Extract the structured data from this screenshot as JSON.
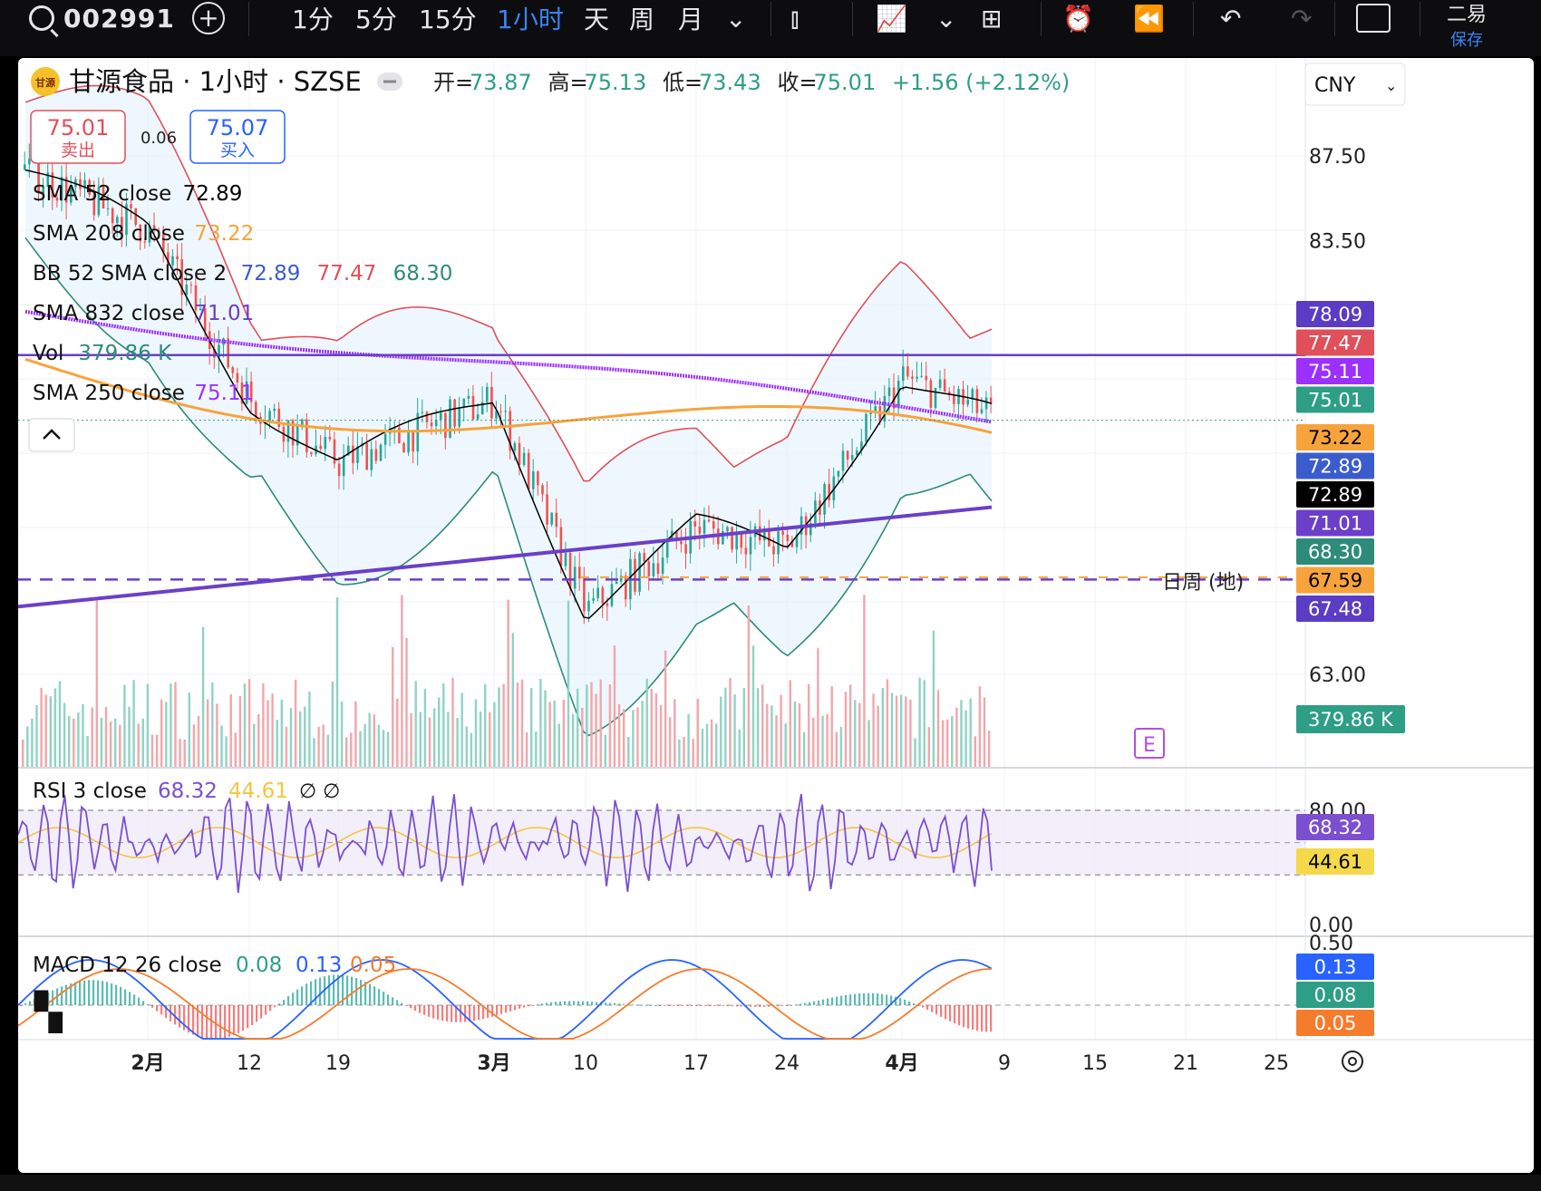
{
  "toolbar": {
    "symbol": "002991",
    "intervals": [
      "1分",
      "5分",
      "15分",
      "1小时",
      "天",
      "周",
      "月"
    ],
    "active_interval": "1小时",
    "account": "二易",
    "save_label": "保存"
  },
  "header": {
    "name": "甘源食品 · 1小时 · SZSE",
    "logo_text": "甘源",
    "ohlc": [
      {
        "label": "开=",
        "value": "73.87"
      },
      {
        "label": "高=",
        "value": "75.13"
      },
      {
        "label": "低=",
        "value": "73.43"
      },
      {
        "label": "收=",
        "value": "75.01"
      },
      {
        "label": "",
        "value": "+1.56 (+2.12%)"
      }
    ],
    "currency": "CNY"
  },
  "trade": {
    "sell_price": "75.01",
    "sell_label": "卖出",
    "spread": "0.06",
    "buy_price": "75.07",
    "buy_label": "买入"
  },
  "legend": [
    {
      "name": "SMA 52 close",
      "values": [
        {
          "v": "72.89",
          "c": "#000000"
        }
      ]
    },
    {
      "name": "SMA 208 close",
      "values": [
        {
          "v": "73.22",
          "c": "#f7a33c"
        }
      ]
    },
    {
      "name": "BB 52 SMA close 2",
      "values": [
        {
          "v": "72.89",
          "c": "#3b5ccc"
        },
        {
          "v": "77.47",
          "c": "#e0505a"
        },
        {
          "v": "68.30",
          "c": "#2e8b7a"
        }
      ]
    },
    {
      "name": "SMA 832 close",
      "values": [
        {
          "v": "71.01",
          "c": "#6b3fc9"
        }
      ]
    },
    {
      "name": "Vol",
      "values": [
        {
          "v": "379.86 K",
          "c": "#2e8b7a"
        }
      ]
    },
    {
      "name": "SMA 250 close",
      "values": [
        {
          "v": "75.11",
          "c": "#9b30ff"
        }
      ]
    }
  ],
  "collapse_icon": "chevron-up-icon",
  "price_ticks": [
    "87.50",
    "83.50",
    "63.00"
  ],
  "price_badges": [
    {
      "text": "78.09",
      "bg": "#5b3cc4",
      "fg": "#ffffff"
    },
    {
      "text": "77.47",
      "bg": "#e0505a",
      "fg": "#ffffff"
    },
    {
      "text": "75.11",
      "bg": "#9b30ff",
      "fg": "#ffffff"
    },
    {
      "text": "75.01",
      "bg": "#2e9e86",
      "fg": "#ffffff"
    },
    {
      "text": "73.22",
      "bg": "#f7a33c",
      "fg": "#000000"
    },
    {
      "text": "72.89",
      "bg": "#3b5ccc",
      "fg": "#ffffff"
    },
    {
      "text": "72.89",
      "bg": "#000000",
      "fg": "#ffffff"
    },
    {
      "text": "71.01",
      "bg": "#6b3fc9",
      "fg": "#ffffff"
    },
    {
      "text": "68.30",
      "bg": "#2e8b7a",
      "fg": "#ffffff"
    },
    {
      "text": "67.59",
      "bg": "#f7a33c",
      "fg": "#000000"
    },
    {
      "text": "67.48",
      "bg": "#5b3cc4",
      "fg": "#ffffff"
    }
  ],
  "vol_badge": {
    "text": "379.86 K",
    "bg": "#2e9e86"
  },
  "line_annotation": "日周 (地)",
  "earnings_marker": "E",
  "rsi": {
    "label": "RSI 3 close",
    "value1": "68.32",
    "value2": "44.61",
    "extra": "∅  ∅",
    "ticks": [
      "80.00",
      "0.00"
    ],
    "badges": [
      {
        "text": "68.32",
        "bg": "#7b4fd0",
        "fg": "#ffffff"
      },
      {
        "text": "44.61",
        "bg": "#f5d94a",
        "fg": "#000000"
      }
    ]
  },
  "macd": {
    "label": "MACD 12 26 close",
    "value1": "0.08",
    "value2": "0.13",
    "value3": "0.05",
    "ticks": [
      "0.50"
    ],
    "badges": [
      {
        "text": "0.13",
        "bg": "#2962ff",
        "fg": "#ffffff"
      },
      {
        "text": "0.08",
        "bg": "#2e9e86",
        "fg": "#ffffff"
      },
      {
        "text": "0.05",
        "bg": "#f57c2c",
        "fg": "#ffffff"
      }
    ]
  },
  "time_axis": [
    "2月",
    "12",
    "19",
    "3月",
    "10",
    "17",
    "24",
    "4月",
    "9",
    "15",
    "21",
    "25"
  ],
  "chart_data": {
    "type": "candlestick",
    "symbol": "002991",
    "interval": "1小时",
    "last": {
      "open": 73.87,
      "high": 75.13,
      "low": 73.43,
      "close": 75.01,
      "change": 1.56,
      "change_pct": 2.12
    },
    "y_ticks": [
      87.5,
      83.5,
      63.0
    ],
    "x_ticks": [
      "2月",
      "12",
      "19",
      "3月",
      "10",
      "17",
      "24",
      "4月",
      "9",
      "15",
      "21",
      "25"
    ],
    "approx_close_path": [
      [
        "2月",
        84
      ],
      [
        "12",
        76
      ],
      [
        "19",
        73
      ],
      [
        "3月",
        76
      ],
      [
        "10",
        66
      ],
      [
        "17",
        70
      ],
      [
        "24",
        69
      ],
      [
        "4月",
        77
      ],
      [
        "9",
        75
      ]
    ],
    "horizontal_lines": [
      78.09,
      67.48
    ],
    "indicators": {
      "SMA 52 close": 72.89,
      "SMA 208 close": 73.22,
      "BB 52 SMA close 2": {
        "basis": 72.89,
        "upper": 77.47,
        "lower": 68.3
      },
      "SMA 832 close": 71.01,
      "SMA 250 close": 75.11,
      "Vol": "379.86 K",
      "RSI 3 close": [
        68.32,
        44.61
      ],
      "MACD 12 26 close": [
        0.08,
        0.13,
        0.05
      ]
    }
  }
}
